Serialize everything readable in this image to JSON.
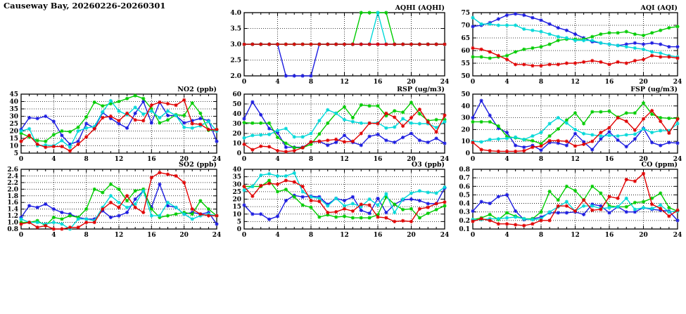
{
  "page_title": "Causeway Bay, 20260226-20260301",
  "colors": {
    "blue": "#1c1ce0",
    "green": "#00cc00",
    "cyan": "#00d8d8",
    "red": "#e00000",
    "axis": "#000000"
  },
  "x_axis": {
    "min": 0,
    "max": 24,
    "major_ticks": [
      0,
      4,
      8,
      12,
      16,
      20,
      24
    ],
    "minor_step": 1
  },
  "chart_data": [
    {
      "id": "aqhi",
      "type": "line",
      "title": "AQHI (AQHI)",
      "ylim": [
        2.0,
        4.0
      ],
      "ystep": 0.5,
      "ydecimals": 1,
      "grid": true,
      "legend": "none",
      "series": [
        {
          "name": "blue",
          "color": "blue",
          "values": [
            3,
            3,
            3,
            3,
            3,
            2,
            2,
            2,
            2,
            3,
            3,
            3,
            3,
            3,
            3,
            3,
            3,
            3,
            3,
            3,
            3,
            3,
            3,
            3,
            3
          ]
        },
        {
          "name": "green",
          "color": "green",
          "values": [
            3,
            3,
            3,
            3,
            3,
            3,
            3,
            3,
            3,
            3,
            3,
            3,
            3,
            3,
            4,
            4,
            4,
            4,
            3,
            3,
            3,
            3,
            3,
            3,
            3
          ]
        },
        {
          "name": "cyan",
          "color": "cyan",
          "values": [
            3,
            3,
            3,
            3,
            3,
            3,
            3,
            3,
            3,
            3,
            3,
            3,
            3,
            3,
            3,
            3,
            4,
            3,
            3,
            3,
            3,
            3,
            3,
            3,
            3
          ]
        },
        {
          "name": "red",
          "color": "red",
          "values": [
            3,
            3,
            3,
            3,
            3,
            3,
            3,
            3,
            3,
            3,
            3,
            3,
            3,
            3,
            3,
            3,
            3,
            3,
            3,
            3,
            3,
            3,
            3,
            3,
            3
          ]
        }
      ]
    },
    {
      "id": "aqi",
      "type": "line",
      "title": "AQI (AQI)",
      "ylim": [
        50,
        75
      ],
      "ystep": 5,
      "ydecimals": 0,
      "grid": true,
      "legend": "none",
      "series": [
        {
          "name": "blue",
          "color": "blue",
          "values": [
            69.5,
            70,
            71,
            72.5,
            74,
            74.5,
            74,
            73,
            72,
            70.5,
            69,
            68,
            66.5,
            65,
            63.5,
            63,
            62.5,
            62,
            62.5,
            63,
            62.5,
            63,
            62.5,
            61.5,
            61.5
          ]
        },
        {
          "name": "green",
          "color": "green",
          "values": [
            57.5,
            57.5,
            57,
            57.5,
            58,
            59.5,
            60.5,
            61,
            61.5,
            62.5,
            64,
            64.5,
            64.5,
            64.5,
            65.5,
            66.5,
            67,
            67,
            67.5,
            66.5,
            66,
            67,
            68,
            69,
            69.5
          ]
        },
        {
          "name": "cyan",
          "color": "cyan",
          "values": [
            73,
            70.5,
            70.5,
            70,
            70,
            70,
            68.5,
            68,
            67.5,
            66.5,
            65.5,
            65,
            64,
            64,
            64,
            63,
            62.5,
            62,
            61.5,
            61,
            60.5,
            59.5,
            59,
            58,
            57.5
          ]
        },
        {
          "name": "red",
          "color": "red",
          "values": [
            61,
            60.5,
            59.5,
            58,
            56.5,
            54.5,
            54.5,
            54,
            54,
            54.5,
            54.5,
            55,
            55,
            55.5,
            56,
            55.5,
            54.5,
            55.5,
            55,
            56,
            56.5,
            58,
            57.5,
            57.5,
            57
          ]
        }
      ]
    },
    {
      "id": "no2",
      "type": "line",
      "title": "NO2 (ppb)",
      "ylim": [
        5,
        45
      ],
      "ystep": 5,
      "ydecimals": 0,
      "grid": true,
      "legend": "none",
      "series": [
        {
          "name": "blue",
          "color": "blue",
          "values": [
            21,
            29,
            28.5,
            30,
            26.5,
            17,
            11,
            13,
            25,
            22,
            32.5,
            28.5,
            25,
            22,
            32,
            40,
            25.5,
            39.5,
            30.5,
            30.5,
            25.5,
            27,
            28.5,
            27,
            13
          ]
        },
        {
          "name": "green",
          "color": "green",
          "values": [
            18.5,
            16,
            13.5,
            13,
            17.5,
            20,
            19.5,
            22.5,
            29.5,
            39.5,
            37,
            38.5,
            40,
            42,
            44,
            42,
            35,
            25.5,
            27.5,
            31,
            30.5,
            39,
            32,
            20.5,
            21
          ]
        },
        {
          "name": "cyan",
          "color": "cyan",
          "values": [
            20,
            21.5,
            10,
            10.5,
            10,
            13.5,
            9,
            20,
            22,
            23,
            33,
            40.5,
            33.5,
            31,
            36,
            31.5,
            33.5,
            29,
            33.5,
            30.5,
            22.5,
            22,
            23.5,
            26.5,
            20
          ]
        },
        {
          "name": "red",
          "color": "red",
          "values": [
            13,
            17,
            11,
            9,
            9.5,
            9.5,
            6.5,
            11,
            16,
            21.5,
            29,
            30,
            27,
            32,
            27.5,
            27,
            37.5,
            39.5,
            38.5,
            37.5,
            41,
            25,
            24.5,
            21,
            21
          ]
        }
      ]
    },
    {
      "id": "rsp",
      "type": "line",
      "title": "RSP (ug/m3)",
      "ylim": [
        0,
        60
      ],
      "ystep": 10,
      "ydecimals": 0,
      "grid": true,
      "legend": "none",
      "series": [
        {
          "name": "blue",
          "color": "blue",
          "values": [
            35,
            52,
            39,
            25,
            21,
            6,
            6,
            6,
            11,
            12,
            8,
            11,
            18,
            11,
            8,
            17,
            19,
            13,
            11,
            16,
            20,
            13,
            11,
            15,
            10
          ]
        },
        {
          "name": "green",
          "color": "green",
          "values": [
            31,
            30.5,
            30.5,
            30.5,
            16,
            10,
            5.5,
            5.5,
            9,
            19.5,
            30.5,
            40.5,
            47,
            36,
            49,
            48,
            48,
            38,
            43,
            41.5,
            51.5,
            40,
            33,
            34,
            34
          ]
        },
        {
          "name": "cyan",
          "color": "cyan",
          "values": [
            15.5,
            18,
            18.5,
            19,
            23,
            25,
            16.5,
            16.5,
            20,
            33,
            44,
            40.5,
            34,
            32,
            30.5,
            30.5,
            31,
            25.5,
            26.5,
            35,
            30.5,
            30,
            30,
            26,
            32
          ]
        },
        {
          "name": "red",
          "color": "red",
          "values": [
            9,
            3.5,
            7,
            6.5,
            2.5,
            1.5,
            2.5,
            5.5,
            11.5,
            12,
            13,
            14,
            11.5,
            12,
            20,
            30.5,
            30,
            40.5,
            36.5,
            27.5,
            36,
            44.5,
            31.5,
            21.5,
            38.5
          ]
        }
      ]
    },
    {
      "id": "fsp",
      "type": "line",
      "title": "FSP (ug/m3)",
      "ylim": [
        0,
        50
      ],
      "ystep": 10,
      "ydecimals": 0,
      "grid": true,
      "legend": "none",
      "series": [
        {
          "name": "blue",
          "color": "blue",
          "values": [
            30,
            44.5,
            32,
            21,
            17.5,
            6.5,
            5,
            6.5,
            2.5,
            9,
            8.5,
            6.5,
            16.5,
            9.5,
            3,
            12,
            18,
            11,
            5.5,
            12,
            21,
            9,
            6.5,
            9,
            8.5
          ]
        },
        {
          "name": "green",
          "color": "green",
          "values": [
            26.5,
            26.5,
            26.5,
            23,
            14,
            13,
            11.5,
            10.5,
            8,
            14.5,
            20.5,
            28,
            34,
            25,
            35,
            35,
            35.5,
            30.5,
            34,
            34,
            42.5,
            33,
            30,
            29.5,
            29.5
          ]
        },
        {
          "name": "cyan",
          "color": "cyan",
          "values": [
            10,
            9.5,
            11.5,
            12,
            12.5,
            13.5,
            11.5,
            14.5,
            17.5,
            25,
            30,
            25.5,
            20,
            16.5,
            15.5,
            14.5,
            15,
            14.5,
            15.5,
            16,
            20.5,
            17.5,
            19,
            19,
            25
          ]
        },
        {
          "name": "red",
          "color": "red",
          "values": [
            9,
            3,
            2,
            1.5,
            1.5,
            1.5,
            2,
            5,
            6,
            10.5,
            10.5,
            10,
            6,
            7.5,
            10,
            17.5,
            21.5,
            30,
            27,
            19.5,
            29,
            36,
            27,
            17,
            29
          ]
        }
      ]
    },
    {
      "id": "so2",
      "type": "line",
      "title": "SO2 (ppb)",
      "ylim": [
        0.8,
        2.6
      ],
      "ystep": 0.2,
      "ydecimals": 1,
      "grid": true,
      "legend": "none",
      "series": [
        {
          "name": "blue",
          "color": "blue",
          "values": [
            1.15,
            1.5,
            1.45,
            1.55,
            1.4,
            1.3,
            1.25,
            1.15,
            1.1,
            1.1,
            1.35,
            1.15,
            1.2,
            1.3,
            1.7,
            1.95,
            1.45,
            2.15,
            1.5,
            1.45,
            1.25,
            1.3,
            1.25,
            1.3,
            0.95
          ]
        },
        {
          "name": "green",
          "color": "green",
          "values": [
            1.0,
            1.0,
            1.05,
            0.9,
            1.15,
            1.1,
            1.2,
            1.15,
            1.4,
            2.0,
            1.9,
            2.15,
            2.0,
            1.65,
            1.95,
            2.0,
            1.4,
            1.15,
            1.2,
            1.25,
            1.3,
            1.25,
            1.65,
            1.4,
            1.2
          ]
        },
        {
          "name": "cyan",
          "color": "cyan",
          "values": [
            1.1,
            1.0,
            1.0,
            0.95,
            1.0,
            0.95,
            0.8,
            1.1,
            1.1,
            1.05,
            1.45,
            1.8,
            1.6,
            1.45,
            1.55,
            1.95,
            1.2,
            1.2,
            1.6,
            1.45,
            1.25,
            1.1,
            1.2,
            1.25,
            1.2
          ]
        },
        {
          "name": "red",
          "color": "red",
          "values": [
            0.95,
            1.0,
            0.85,
            0.9,
            0.8,
            0.8,
            0.85,
            0.85,
            1.0,
            1.0,
            1.4,
            1.6,
            1.45,
            1.8,
            1.45,
            1.3,
            2.35,
            2.5,
            2.45,
            2.4,
            2.2,
            1.4,
            1.25,
            1.2,
            1.2
          ]
        }
      ]
    },
    {
      "id": "o3",
      "type": "line",
      "title": "O3 (ppb)",
      "ylim": [
        0,
        40
      ],
      "ystep": 5,
      "ydecimals": 0,
      "grid": true,
      "legend": "none",
      "series": [
        {
          "name": "blue",
          "color": "blue",
          "values": [
            16,
            10,
            10,
            6.5,
            8.5,
            19,
            22.5,
            21.5,
            22,
            21.5,
            16.5,
            20.5,
            19,
            21.5,
            12.5,
            10.5,
            20.5,
            11,
            16.5,
            19.5,
            20,
            19,
            17,
            17,
            27.5
          ]
        },
        {
          "name": "green",
          "color": "green",
          "values": [
            28.5,
            28.5,
            28.5,
            32.5,
            25,
            26.5,
            21.5,
            16,
            14.5,
            8,
            9.5,
            8,
            8.5,
            7.5,
            7.5,
            7.5,
            9.5,
            21.5,
            16.5,
            13,
            13.5,
            7.5,
            10.5,
            13,
            15.5
          ]
        },
        {
          "name": "cyan",
          "color": "cyan",
          "values": [
            26,
            28.5,
            36,
            37,
            35.5,
            35.5,
            37.5,
            25,
            21.5,
            20.5,
            15.5,
            20.5,
            15.5,
            17,
            15,
            20,
            16,
            23.5,
            11,
            20,
            24,
            25.5,
            24.5,
            24,
            28
          ]
        },
        {
          "name": "red",
          "color": "red",
          "values": [
            28.5,
            22,
            29,
            30.5,
            30,
            32.5,
            31.5,
            28.5,
            19,
            18.5,
            11,
            11.5,
            13.5,
            12,
            16.5,
            16,
            8,
            7.5,
            5,
            5.5,
            5,
            13.5,
            14.5,
            17,
            18
          ]
        }
      ]
    },
    {
      "id": "co",
      "type": "line",
      "title": "CO (ppm)",
      "ylim": [
        0.1,
        0.8
      ],
      "ystep": 0.1,
      "ydecimals": 1,
      "grid": true,
      "legend": "none",
      "series": [
        {
          "name": "blue",
          "color": "blue",
          "values": [
            0.31,
            0.42,
            0.4,
            0.48,
            0.5,
            0.31,
            0.21,
            0.22,
            0.24,
            0.29,
            0.29,
            0.29,
            0.3,
            0.27,
            0.39,
            0.37,
            0.29,
            0.36,
            0.3,
            0.3,
            0.35,
            0.33,
            0.32,
            0.31,
            0.2
          ]
        },
        {
          "name": "green",
          "color": "green",
          "values": [
            0.21,
            0.23,
            0.27,
            0.21,
            0.29,
            0.25,
            0.22,
            0.22,
            0.3,
            0.54,
            0.44,
            0.6,
            0.55,
            0.44,
            0.6,
            0.52,
            0.37,
            0.36,
            0.36,
            0.41,
            0.42,
            0.46,
            0.52,
            0.35,
            0.31
          ]
        },
        {
          "name": "cyan",
          "color": "cyan",
          "values": [
            0.21,
            0.21,
            0.22,
            0.22,
            0.23,
            0.24,
            0.22,
            0.21,
            0.22,
            0.3,
            0.36,
            0.42,
            0.31,
            0.37,
            0.37,
            0.34,
            0.35,
            0.36,
            0.46,
            0.33,
            0.35,
            0.34,
            0.38,
            0.3,
            0.31
          ]
        },
        {
          "name": "red",
          "color": "red",
          "values": [
            0.19,
            0.22,
            0.2,
            0.16,
            0.16,
            0.15,
            0.14,
            0.16,
            0.2,
            0.2,
            0.37,
            0.37,
            0.31,
            0.44,
            0.32,
            0.33,
            0.48,
            0.46,
            0.68,
            0.66,
            0.75,
            0.39,
            0.34,
            0.25,
            0.32
          ]
        }
      ]
    }
  ]
}
